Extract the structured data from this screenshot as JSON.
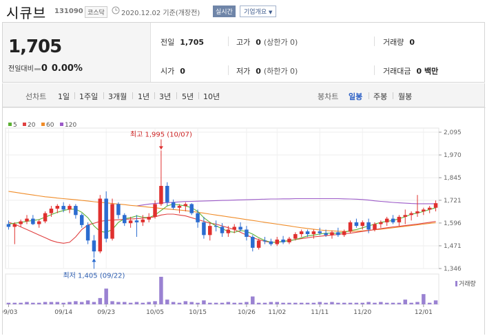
{
  "header": {
    "name": "시큐브",
    "code": "131090",
    "market": "코스닥",
    "date": "2020.12.02 기준(개장전)",
    "live": "실시간",
    "corp": "기업개요"
  },
  "summary": {
    "price": "1,705",
    "change_label": "전일대비",
    "change_value": "0",
    "change_pct": "0.00%",
    "prev_label": "전일",
    "prev_value": "1,705",
    "high_label": "고가",
    "high_value": "0",
    "high_sub": "(상한가 0)",
    "volume_label": "거래량",
    "volume_value": "0",
    "open_label": "시가",
    "open_value": "0",
    "low_label": "저가",
    "low_value": "0",
    "low_sub": "(하한가 0)",
    "amount_label": "거래대금",
    "amount_value": "0 백만"
  },
  "toolbar": {
    "line_label": "선차트",
    "periods": [
      "1일",
      "1주일",
      "3개월",
      "1년",
      "3년",
      "5년",
      "10년"
    ],
    "candle_label": "봉차트",
    "candles": [
      "일봉",
      "주봉",
      "월봉"
    ],
    "active_candle": "일봉"
  },
  "colors": {
    "up": "#e0302e",
    "down": "#2b6cd0",
    "ma5": "#5bb033",
    "ma20": "#e04040",
    "ma60": "#f08c28",
    "ma120": "#9b59c8",
    "volume": "#9a82d2"
  },
  "chart_data": {
    "type": "candlestick",
    "legend": [
      {
        "name": "5",
        "color": "#5bb033"
      },
      {
        "name": "20",
        "color": "#e04040"
      },
      {
        "name": "60",
        "color": "#f08c28"
      },
      {
        "name": "120",
        "color": "#9b59c8"
      }
    ],
    "y_ticks": [
      "2,095",
      "1,970",
      "1,845",
      "1,721",
      "1,596",
      "1,471",
      "1,346"
    ],
    "ylim": [
      1346,
      2095
    ],
    "x_ticks": [
      "09/03",
      "09/14",
      "09/23",
      "10/05",
      "10/15",
      "10/26",
      "11/02",
      "11/11",
      "11/20",
      "12/01"
    ],
    "high_annotation": "최고 1,995 (10/07)",
    "low_annotation": "최저 1,405 (09/22)",
    "volume_label": "거래량",
    "candles": [
      [
        1590,
        1610,
        1560,
        1575
      ],
      [
        1575,
        1600,
        1480,
        1590
      ],
      [
        1590,
        1615,
        1575,
        1605
      ],
      [
        1605,
        1640,
        1590,
        1620
      ],
      [
        1620,
        1640,
        1585,
        1590
      ],
      [
        1590,
        1615,
        1570,
        1605
      ],
      [
        1605,
        1660,
        1595,
        1650
      ],
      [
        1650,
        1690,
        1630,
        1675
      ],
      [
        1675,
        1700,
        1650,
        1690
      ],
      [
        1690,
        1710,
        1655,
        1670
      ],
      [
        1670,
        1700,
        1650,
        1690
      ],
      [
        1690,
        1700,
        1620,
        1640
      ],
      [
        1640,
        1650,
        1570,
        1585
      ],
      [
        1585,
        1600,
        1480,
        1500
      ],
      [
        1500,
        1530,
        1405,
        1440
      ],
      [
        1440,
        1750,
        1430,
        1730
      ],
      [
        1730,
        1770,
        1490,
        1510
      ],
      [
        1510,
        1730,
        1500,
        1700
      ],
      [
        1700,
        1710,
        1620,
        1640
      ],
      [
        1640,
        1650,
        1580,
        1595
      ],
      [
        1595,
        1630,
        1570,
        1610
      ],
      [
        1610,
        1640,
        1520,
        1600
      ],
      [
        1600,
        1640,
        1580,
        1615
      ],
      [
        1615,
        1650,
        1600,
        1630
      ],
      [
        1630,
        1720,
        1620,
        1700
      ],
      [
        1700,
        1995,
        1690,
        1800
      ],
      [
        1800,
        1820,
        1690,
        1710
      ],
      [
        1710,
        1725,
        1670,
        1680
      ],
      [
        1680,
        1700,
        1650,
        1690
      ],
      [
        1690,
        1710,
        1660,
        1700
      ],
      [
        1700,
        1705,
        1640,
        1650
      ],
      [
        1650,
        1670,
        1570,
        1600
      ],
      [
        1600,
        1630,
        1510,
        1530
      ],
      [
        1530,
        1600,
        1500,
        1580
      ],
      [
        1580,
        1610,
        1550,
        1575
      ],
      [
        1575,
        1595,
        1520,
        1540
      ],
      [
        1540,
        1580,
        1520,
        1560
      ],
      [
        1560,
        1590,
        1540,
        1575
      ],
      [
        1575,
        1600,
        1550,
        1560
      ],
      [
        1560,
        1580,
        1500,
        1520
      ],
      [
        1520,
        1530,
        1440,
        1460
      ],
      [
        1460,
        1510,
        1450,
        1500
      ],
      [
        1500,
        1520,
        1480,
        1495
      ],
      [
        1495,
        1510,
        1470,
        1480
      ],
      [
        1480,
        1520,
        1470,
        1505
      ],
      [
        1505,
        1525,
        1480,
        1490
      ],
      [
        1490,
        1520,
        1480,
        1510
      ],
      [
        1510,
        1545,
        1500,
        1535
      ],
      [
        1535,
        1560,
        1520,
        1550
      ],
      [
        1550,
        1560,
        1520,
        1535
      ],
      [
        1535,
        1560,
        1510,
        1550
      ],
      [
        1550,
        1570,
        1530,
        1540
      ],
      [
        1540,
        1560,
        1520,
        1530
      ],
      [
        1530,
        1555,
        1510,
        1545
      ],
      [
        1545,
        1570,
        1520,
        1530
      ],
      [
        1530,
        1560,
        1520,
        1550
      ],
      [
        1550,
        1610,
        1540,
        1600
      ],
      [
        1600,
        1620,
        1570,
        1580
      ],
      [
        1580,
        1610,
        1560,
        1600
      ],
      [
        1600,
        1620,
        1540,
        1560
      ],
      [
        1560,
        1600,
        1550,
        1590
      ],
      [
        1590,
        1610,
        1570,
        1600
      ],
      [
        1600,
        1630,
        1580,
        1620
      ],
      [
        1620,
        1640,
        1590,
        1600
      ],
      [
        1600,
        1640,
        1580,
        1630
      ],
      [
        1630,
        1670,
        1590,
        1640
      ],
      [
        1640,
        1660,
        1610,
        1650
      ],
      [
        1650,
        1750,
        1630,
        1660
      ],
      [
        1660,
        1680,
        1640,
        1670
      ],
      [
        1670,
        1690,
        1650,
        1680
      ],
      [
        1680,
        1720,
        1660,
        1705
      ]
    ],
    "volumes": [
      2,
      2,
      2,
      3,
      2,
      2,
      3,
      3,
      3,
      2,
      3,
      4,
      3,
      5,
      3,
      8,
      20,
      4,
      3,
      3,
      2,
      3,
      2,
      3,
      4,
      35,
      6,
      3,
      2,
      4,
      3,
      2,
      5,
      2,
      2,
      2,
      3,
      2,
      2,
      3,
      10,
      2,
      2,
      3,
      3,
      2,
      2,
      2,
      2,
      2,
      2,
      3,
      2,
      3,
      2,
      2,
      2,
      2,
      2,
      3,
      2,
      3,
      2,
      2,
      2,
      6,
      2,
      3,
      13,
      2,
      5
    ],
    "ma5": [
      1590,
      1595,
      1600,
      1605,
      1610,
      1615,
      1628,
      1642,
      1655,
      1665,
      1672,
      1672,
      1655,
      1625,
      1580,
      1550,
      1545,
      1560,
      1600,
      1620,
      1625,
      1635,
      1628,
      1625,
      1640,
      1665,
      1690,
      1700,
      1695,
      1690,
      1680,
      1660,
      1625,
      1600,
      1580,
      1565,
      1550,
      1545,
      1555,
      1550,
      1535,
      1515,
      1500,
      1490,
      1490,
      1495,
      1498,
      1505,
      1515,
      1525,
      1530,
      1535,
      1540,
      1540,
      1540,
      1545,
      1555,
      1560,
      1570,
      1580,
      1590,
      1600,
      1605,
      1610,
      1620,
      1630,
      1645,
      1650,
      1660,
      1670,
      1680
    ],
    "ma20": [
      1600,
      1590,
      1575,
      1560,
      1545,
      1530,
      1515,
      1500,
      1490,
      1485,
      1490,
      1520,
      1560,
      1585,
      1595,
      1605,
      1610,
      1612,
      1614,
      1616,
      1618,
      1620,
      1622,
      1625,
      1630,
      1640,
      1645,
      1645,
      1640,
      1635,
      1625,
      1615,
      1605,
      1595,
      1590,
      1580,
      1570,
      1560,
      1545,
      1530,
      1515,
      1505,
      1495,
      1490,
      1490,
      1495,
      1500,
      1505,
      1510,
      1515,
      1520,
      1523,
      1527,
      1530,
      1533,
      1537,
      1540,
      1545,
      1550,
      1555,
      1560,
      1565,
      1570,
      1575,
      1578,
      1582,
      1586,
      1590,
      1595,
      1600,
      1605
    ],
    "ma60": [
      1770,
      1765,
      1760,
      1755,
      1750,
      1745,
      1740,
      1737,
      1733,
      1730,
      1727,
      1724,
      1720,
      1717,
      1713,
      1710,
      1707,
      1703,
      1700,
      1697,
      1693,
      1690,
      1687,
      1683,
      1680,
      1676,
      1673,
      1670,
      1667,
      1664,
      1660,
      1655,
      1650,
      1645,
      1640,
      1635,
      1630,
      1625,
      1620,
      1615,
      1610,
      1605,
      1600,
      1595,
      1590,
      1585,
      1580,
      1575,
      1570,
      1566,
      1562,
      1558,
      1555,
      1553,
      1551,
      1550,
      1550,
      1551,
      1553,
      1556,
      1559,
      1562,
      1566,
      1570,
      1574,
      1578,
      1582,
      1586,
      1590,
      1594,
      1598
    ],
    "ma120": [
      null,
      null,
      null,
      null,
      null,
      null,
      null,
      null,
      null,
      null,
      null,
      null,
      null,
      null,
      null,
      null,
      null,
      null,
      null,
      null,
      null,
      1690,
      1695,
      1700,
      1703,
      1706,
      1708,
      1710,
      1712,
      1714,
      1715,
      1716,
      1717,
      1718,
      1719,
      1720,
      1721,
      1722,
      1723,
      1724,
      1725,
      1726,
      1727,
      1728,
      1728,
      1729,
      1729,
      1730,
      1730,
      1730,
      1730,
      1730,
      1730,
      1730,
      1730,
      1729,
      1728,
      1727,
      1725,
      1722,
      1718,
      1715,
      1712,
      1709,
      1707,
      1705,
      1703,
      1702,
      1702,
      1702,
      1702
    ]
  }
}
